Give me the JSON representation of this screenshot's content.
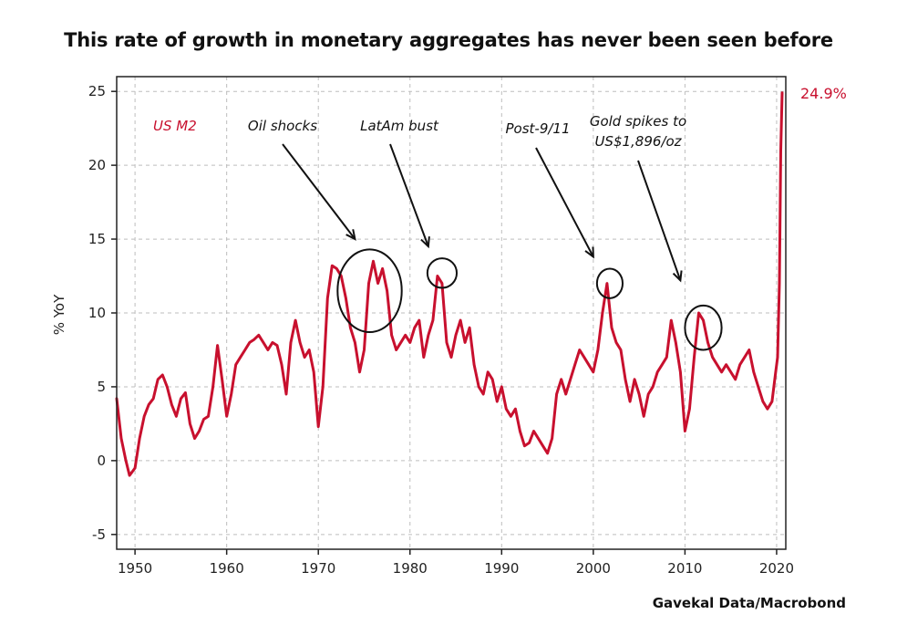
{
  "title": "This rate of growth in monetary aggregates has never been seen before",
  "source": "Gavekal Data/Macrobond",
  "colors": {
    "series": "#c8102e",
    "axis": "#222222",
    "grid": "#bdbdbd"
  },
  "chart_data": {
    "type": "line",
    "title": "This rate of growth in monetary aggregates has never been seen before",
    "ylabel": "% YoY",
    "xlabel": "",
    "xlim": [
      1948,
      2021
    ],
    "ylim": [
      -6,
      26
    ],
    "x_ticks": [
      1950,
      1960,
      1970,
      1980,
      1990,
      2000,
      2010,
      2020
    ],
    "y_ticks": [
      -5,
      0,
      5,
      10,
      15,
      20,
      25
    ],
    "grid": true,
    "series": [
      {
        "name": "US M2",
        "x": [
          1948.0,
          1948.5,
          1949.0,
          1949.4,
          1950.0,
          1950.5,
          1951.0,
          1951.5,
          1952.0,
          1952.5,
          1953.0,
          1953.5,
          1954.0,
          1954.5,
          1955.0,
          1955.5,
          1956.0,
          1956.5,
          1957.0,
          1957.5,
          1958.0,
          1958.5,
          1959.0,
          1959.5,
          1960.0,
          1960.5,
          1961.0,
          1961.5,
          1962.0,
          1962.5,
          1963.0,
          1963.5,
          1964.0,
          1964.5,
          1965.0,
          1965.5,
          1966.0,
          1966.5,
          1967.0,
          1967.5,
          1968.0,
          1968.5,
          1969.0,
          1969.5,
          1970.0,
          1970.5,
          1971.0,
          1971.5,
          1972.0,
          1972.5,
          1973.0,
          1973.5,
          1974.0,
          1974.5,
          1975.0,
          1975.5,
          1976.0,
          1976.5,
          1977.0,
          1977.5,
          1978.0,
          1978.5,
          1979.0,
          1979.5,
          1980.0,
          1980.5,
          1981.0,
          1981.5,
          1982.0,
          1982.5,
          1983.0,
          1983.5,
          1984.0,
          1984.5,
          1985.0,
          1985.5,
          1986.0,
          1986.5,
          1987.0,
          1987.5,
          1988.0,
          1988.5,
          1989.0,
          1989.5,
          1990.0,
          1990.5,
          1991.0,
          1991.5,
          1992.0,
          1992.5,
          1993.0,
          1993.5,
          1994.0,
          1994.5,
          1995.0,
          1995.5,
          1996.0,
          1996.5,
          1997.0,
          1997.5,
          1998.0,
          1998.5,
          1999.0,
          1999.5,
          2000.0,
          2000.5,
          2001.0,
          2001.5,
          2002.0,
          2002.5,
          2003.0,
          2003.5,
          2004.0,
          2004.5,
          2005.0,
          2005.5,
          2006.0,
          2006.5,
          2007.0,
          2007.5,
          2008.0,
          2008.5,
          2009.0,
          2009.5,
          2010.0,
          2010.5,
          2011.0,
          2011.5,
          2012.0,
          2012.5,
          2013.0,
          2013.5,
          2014.0,
          2014.5,
          2015.0,
          2015.5,
          2016.0,
          2016.5,
          2017.0,
          2017.5,
          2018.0,
          2018.5,
          2019.0,
          2019.5,
          2019.9,
          2020.1,
          2020.3,
          2020.45,
          2020.6
        ],
        "y": [
          4.2,
          1.5,
          0.0,
          -1.0,
          -0.5,
          1.5,
          3.0,
          3.8,
          4.2,
          5.5,
          5.8,
          5.0,
          3.8,
          3.0,
          4.2,
          4.6,
          2.5,
          1.5,
          2.0,
          2.8,
          3.0,
          5.0,
          7.8,
          5.5,
          3.0,
          4.5,
          6.5,
          7.0,
          7.5,
          8.0,
          8.2,
          8.5,
          8.0,
          7.5,
          8.0,
          7.8,
          6.5,
          4.5,
          8.0,
          9.5,
          8.0,
          7.0,
          7.5,
          6.0,
          2.3,
          5.0,
          11.0,
          13.2,
          13.0,
          12.5,
          11.0,
          9.0,
          8.0,
          6.0,
          7.5,
          12.0,
          13.5,
          12.0,
          13.0,
          11.5,
          8.5,
          7.5,
          8.0,
          8.5,
          8.0,
          9.0,
          9.5,
          7.0,
          8.5,
          9.5,
          12.5,
          12.0,
          8.0,
          7.0,
          8.5,
          9.5,
          8.0,
          9.0,
          6.5,
          5.0,
          4.5,
          6.0,
          5.5,
          4.0,
          5.0,
          3.5,
          3.0,
          3.5,
          2.0,
          1.0,
          1.2,
          2.0,
          1.5,
          1.0,
          0.5,
          1.5,
          4.5,
          5.5,
          4.5,
          5.5,
          6.5,
          7.5,
          7.0,
          6.5,
          6.0,
          7.5,
          10.0,
          12.0,
          9.0,
          8.0,
          7.5,
          5.5,
          4.0,
          5.5,
          4.5,
          3.0,
          4.5,
          5.0,
          6.0,
          6.5,
          7.0,
          9.5,
          8.0,
          6.0,
          2.0,
          3.5,
          7.0,
          10.0,
          9.5,
          8.0,
          7.0,
          6.5,
          6.0,
          6.5,
          6.0,
          5.5,
          6.5,
          7.0,
          7.5,
          6.0,
          5.0,
          4.0,
          3.5,
          4.0,
          6.0,
          7.0,
          12.0,
          21.0,
          24.9
        ]
      }
    ],
    "annotations": [
      {
        "text": "Oil shocks",
        "x": 1974.0,
        "y": 15.0
      },
      {
        "text": "LatAm bust",
        "x": 1982.0,
        "y": 14.5
      },
      {
        "text": "Post-9/11",
        "x": 2000.0,
        "y": 13.8
      },
      {
        "text": "Gold spikes to",
        "x": 2009.5,
        "y": 12.2
      },
      {
        "text": "US$1,896/oz",
        "x": 2009.5,
        "y": 12.2
      }
    ],
    "series_label": "US M2",
    "last_value_label": "24.9%",
    "highlight_circles": [
      {
        "cx": 1975.6,
        "cy": 11.5,
        "rx": 3.5,
        "ry": 2.8
      },
      {
        "cx": 1983.5,
        "cy": 12.7,
        "rx": 1.6,
        "ry": 1.0
      },
      {
        "cx": 2001.8,
        "cy": 12.0,
        "rx": 1.4,
        "ry": 1.0
      },
      {
        "cx": 2012.0,
        "cy": 9.0,
        "rx": 2.0,
        "ry": 1.5
      }
    ]
  }
}
